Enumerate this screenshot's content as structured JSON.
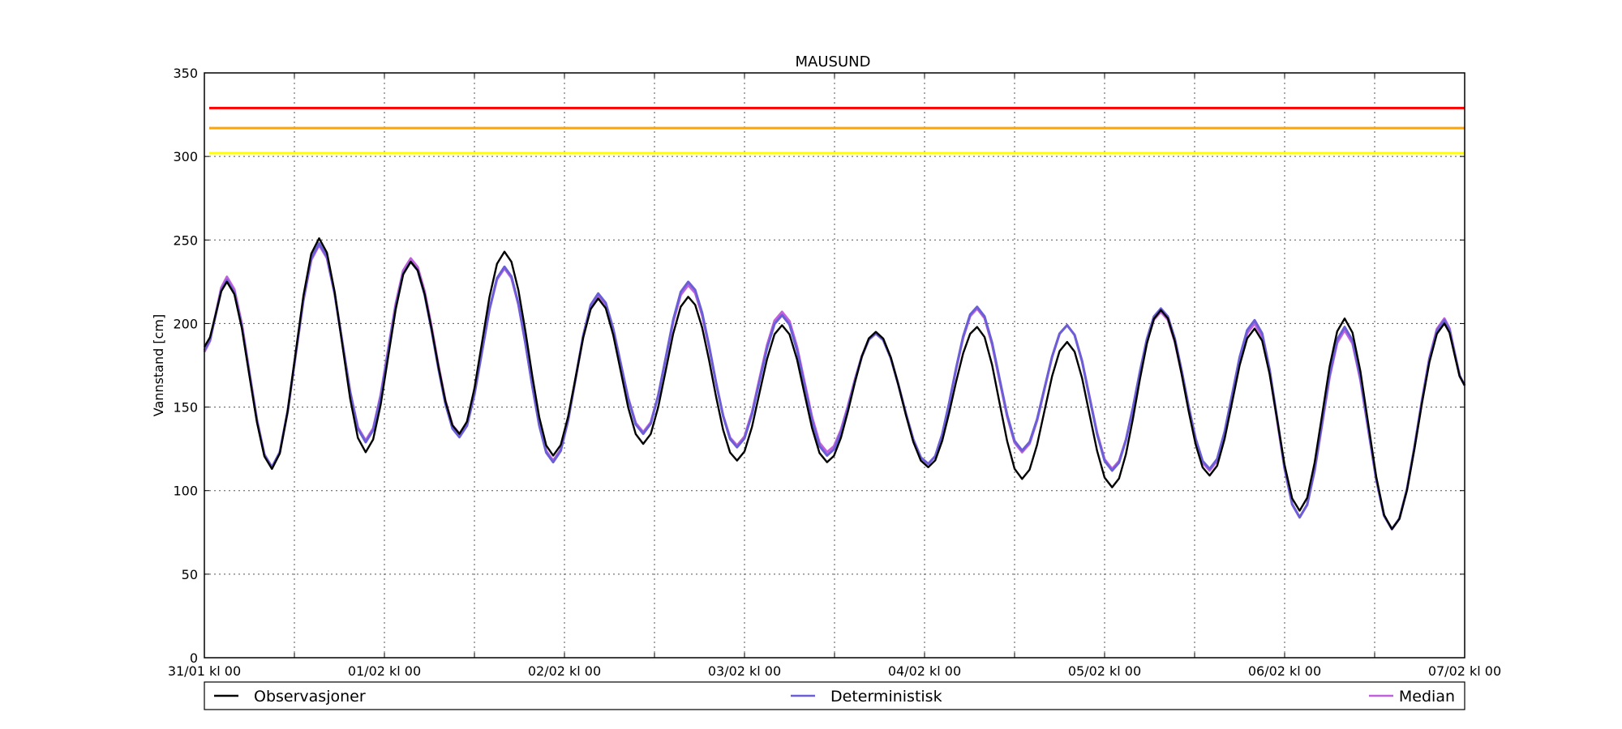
{
  "chart_data": {
    "type": "line",
    "title": "MAUSUND",
    "xlabel": "",
    "ylabel": "Vannstand [cm]",
    "ylim": [
      0,
      350
    ],
    "xlim_hours": [
      0,
      168
    ],
    "yticks": [
      0,
      50,
      100,
      150,
      200,
      250,
      300,
      350
    ],
    "xtick_labels": [
      {
        "hour": 0,
        "label": "31/01 kl 00"
      },
      {
        "hour": 24,
        "label": "01/02 kl 00"
      },
      {
        "hour": 48,
        "label": "02/02 kl 00"
      },
      {
        "hour": 72,
        "label": "03/02 kl 00"
      },
      {
        "hour": 96,
        "label": "04/02 kl 00"
      },
      {
        "hour": 120,
        "label": "05/02 kl 00"
      },
      {
        "hour": 144,
        "label": "06/02 kl 00"
      },
      {
        "hour": 168,
        "label": "07/02 kl 00"
      }
    ],
    "minor_tick_hours": [
      12,
      36,
      60,
      84,
      108,
      132,
      156
    ],
    "grid": true,
    "legend_position": "bottom",
    "thresholds": [
      {
        "value": 329,
        "color": "#ff0000"
      },
      {
        "value": 317,
        "color": "#ffa500"
      },
      {
        "value": 302,
        "color": "#ffff00"
      }
    ],
    "extrema": [
      {
        "hour": 0,
        "obs": 186,
        "det": 184,
        "med": 183
      },
      {
        "hour": 3,
        "obs": 225,
        "det": 226,
        "med": 228
      },
      {
        "hour": 9,
        "obs": 113,
        "det": 114,
        "med": 114
      },
      {
        "hour": 15.3,
        "obs": 251,
        "det": 248,
        "med": 247
      },
      {
        "hour": 21.5,
        "obs": 123,
        "det": 129,
        "med": 130
      },
      {
        "hour": 27.5,
        "obs": 237,
        "det": 237,
        "med": 239
      },
      {
        "hour": 34,
        "obs": 134,
        "det": 132,
        "med": 134
      },
      {
        "hour": 40,
        "obs": 243,
        "det": 234,
        "med": 233
      },
      {
        "hour": 46.5,
        "obs": 121,
        "det": 117,
        "med": 118
      },
      {
        "hour": 52.5,
        "obs": 215,
        "det": 218,
        "med": 217
      },
      {
        "hour": 58.5,
        "obs": 128,
        "det": 134,
        "med": 135
      },
      {
        "hour": 64.5,
        "obs": 216,
        "det": 225,
        "med": 223
      },
      {
        "hour": 71,
        "obs": 118,
        "det": 126,
        "med": 127
      },
      {
        "hour": 77,
        "obs": 199,
        "det": 205,
        "med": 207
      },
      {
        "hour": 83,
        "obs": 117,
        "det": 121,
        "med": 123
      },
      {
        "hour": 89.5,
        "obs": 195,
        "det": 194,
        "med": 194
      },
      {
        "hour": 96.5,
        "obs": 114,
        "det": 116,
        "med": 116
      },
      {
        "hour": 103,
        "obs": 198,
        "det": 210,
        "med": 209
      },
      {
        "hour": 109,
        "obs": 107,
        "det": 124,
        "med": 123
      },
      {
        "hour": 115,
        "obs": 189,
        "det": 199,
        "med": 199
      },
      {
        "hour": 121,
        "obs": 102,
        "det": 112,
        "med": 113
      },
      {
        "hour": 127.5,
        "obs": 208,
        "det": 209,
        "med": 207
      },
      {
        "hour": 134,
        "obs": 109,
        "det": 113,
        "med": 112
      },
      {
        "hour": 140,
        "obs": 197,
        "det": 202,
        "med": 200
      },
      {
        "hour": 146,
        "obs": 88,
        "det": 84,
        "med": 84
      },
      {
        "hour": 152,
        "obs": 203,
        "det": 198,
        "med": 196
      },
      {
        "hour": 158.3,
        "obs": 77,
        "det": 77,
        "med": 77
      },
      {
        "hour": 165.3,
        "obs": 200,
        "det": 202,
        "med": 203
      },
      {
        "hour": 168,
        "obs": 163,
        "det": 163,
        "med": 163
      }
    ],
    "series": [
      {
        "key": "obs",
        "name": "Observasjoner",
        "color": "#000000"
      },
      {
        "key": "det",
        "name": "Deterministisk",
        "color": "#6a5fd6"
      },
      {
        "key": "med",
        "name": "Median",
        "color": "#c060dc"
      }
    ]
  }
}
